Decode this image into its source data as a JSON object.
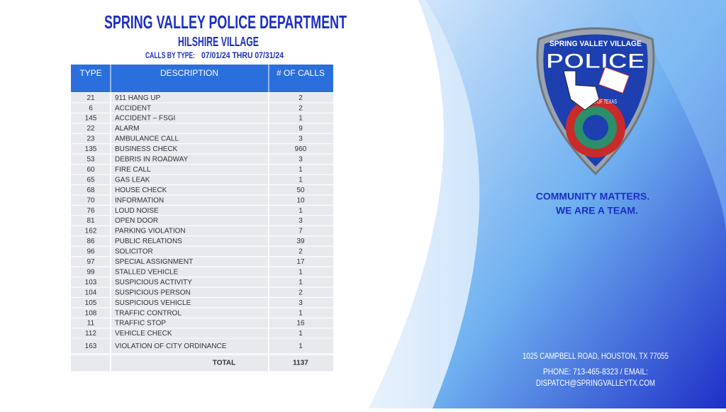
{
  "header": {
    "title": "SPRING VALLEY POLICE DEPARTMENT",
    "subtitle": "HILSHIRE VILLAGE",
    "period_label": "CALLS BY TYPE:",
    "period": "07/01/24 THRU 07/31/24"
  },
  "table": {
    "columns": [
      "TYPE",
      "DESCRIPTION",
      "# OF CALLS"
    ],
    "rows": [
      [
        21,
        "911 HANG UP",
        2
      ],
      [
        6,
        "ACCIDENT",
        2
      ],
      [
        145,
        "ACCIDENT – FSGI",
        1
      ],
      [
        22,
        "ALARM",
        9
      ],
      [
        23,
        "AMBULANCE CALL",
        3
      ],
      [
        135,
        "BUSINESS CHECK",
        960
      ],
      [
        53,
        "DEBRIS IN ROADWAY",
        3
      ],
      [
        60,
        "FIRE CALL",
        1
      ],
      [
        65,
        "GAS LEAK",
        1
      ],
      [
        68,
        "HOUSE CHECK",
        50
      ],
      [
        70,
        "INFORMATION",
        10
      ],
      [
        76,
        "LOUD NOISE",
        1
      ],
      [
        81,
        "OPEN DOOR",
        3
      ],
      [
        162,
        "PARKING VIOLATION",
        7
      ],
      [
        86,
        "PUBLIC RELATIONS",
        39
      ],
      [
        96,
        "SOLICITOR",
        2
      ],
      [
        97,
        "SPECIAL ASSIGNMENT",
        17
      ],
      [
        99,
        "STALLED VEHICLE",
        1
      ],
      [
        103,
        "SUSPICIOUS ACTIVITY",
        1
      ],
      [
        104,
        "SUSPICIOUS PERSON",
        2
      ],
      [
        105,
        "SUSPICIOUS VEHICLE",
        3
      ],
      [
        108,
        "TRAFFIC CONTROL",
        1
      ],
      [
        11,
        "TRAFFIC STOP",
        16
      ],
      [
        112,
        "VEHICLE CHECK",
        1
      ],
      [
        163,
        "VIOLATION OF CITY ORDINANCE",
        1
      ]
    ],
    "total_label": "TOTAL",
    "total": 1137
  },
  "badge": {
    "top": "SPRING VALLEY VILLAGE",
    "word": "POLICE",
    "seal": "THE STATE OF TEXAS"
  },
  "motto": [
    "COMMUNITY MATTERS.",
    "WE ARE A TEAM."
  ],
  "contact": {
    "address": "1025 CAMPBELL ROAD, HOUSTON, TX 77055",
    "phone": "PHONE: 713-465-8323 / EMAIL:",
    "email": "DISPATCH@SPRINGVALLEYTX.COM"
  }
}
